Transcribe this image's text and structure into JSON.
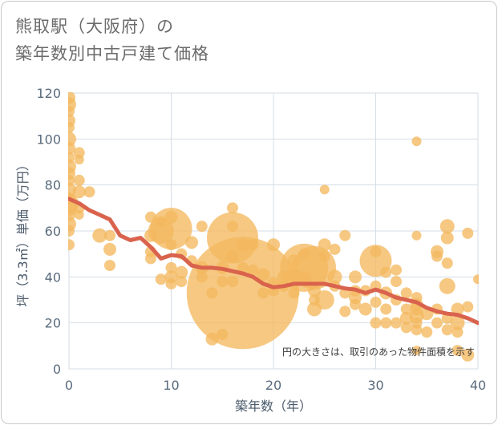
{
  "title_line1": "熊取駅（大阪府）の",
  "title_line2": "築年数別中古戸建て価格",
  "chart_data": {
    "type": "scatter",
    "title": "熊取駅（大阪府）の 築年数別中古戸建て価格",
    "xlabel": "築年数（年）",
    "ylabel": "坪（3.3㎡）単価（万円）",
    "xlim": [
      0,
      40
    ],
    "ylim": [
      0,
      120
    ],
    "xticks": [
      0,
      10,
      20,
      30,
      40
    ],
    "yticks": [
      0,
      20,
      40,
      60,
      80,
      100,
      120
    ],
    "grid": true,
    "note": "円の大きさは、取引のあった物件面積を示す",
    "colors": {
      "bubble": "#f3b95f",
      "trend": "#d9634d",
      "grid": "#d5dde5"
    },
    "points": [
      {
        "x": 0,
        "y": 118,
        "s": 8
      },
      {
        "x": 0,
        "y": 115,
        "s": 9
      },
      {
        "x": 0,
        "y": 112,
        "s": 7
      },
      {
        "x": 0,
        "y": 108,
        "s": 8
      },
      {
        "x": 0,
        "y": 105,
        "s": 7
      },
      {
        "x": 0,
        "y": 100,
        "s": 9
      },
      {
        "x": 0,
        "y": 96,
        "s": 8
      },
      {
        "x": 0,
        "y": 92,
        "s": 7
      },
      {
        "x": 0,
        "y": 88,
        "s": 9
      },
      {
        "x": 0,
        "y": 85,
        "s": 8
      },
      {
        "x": 0,
        "y": 82,
        "s": 7
      },
      {
        "x": 0,
        "y": 78,
        "s": 9
      },
      {
        "x": 0,
        "y": 74,
        "s": 8
      },
      {
        "x": 0,
        "y": 70,
        "s": 10
      },
      {
        "x": 0,
        "y": 67,
        "s": 8
      },
      {
        "x": 0,
        "y": 63,
        "s": 9
      },
      {
        "x": 0,
        "y": 60,
        "s": 7
      },
      {
        "x": 0,
        "y": 54,
        "s": 7
      },
      {
        "x": 0,
        "y": 72,
        "s": 12
      },
      {
        "x": 1,
        "y": 94,
        "s": 7
      },
      {
        "x": 1,
        "y": 91,
        "s": 6
      },
      {
        "x": 1,
        "y": 82,
        "s": 7
      },
      {
        "x": 1,
        "y": 77,
        "s": 8
      },
      {
        "x": 1,
        "y": 70,
        "s": 7
      },
      {
        "x": 1,
        "y": 67,
        "s": 6
      },
      {
        "x": 2,
        "y": 77,
        "s": 7
      },
      {
        "x": 3,
        "y": 58,
        "s": 9
      },
      {
        "x": 4,
        "y": 58,
        "s": 7
      },
      {
        "x": 4,
        "y": 52,
        "s": 8
      },
      {
        "x": 4,
        "y": 45,
        "s": 7
      },
      {
        "x": 8,
        "y": 66,
        "s": 7
      },
      {
        "x": 8,
        "y": 58,
        "s": 8
      },
      {
        "x": 8,
        "y": 51,
        "s": 7
      },
      {
        "x": 8,
        "y": 48,
        "s": 7
      },
      {
        "x": 9,
        "y": 64,
        "s": 7
      },
      {
        "x": 9,
        "y": 60,
        "s": 16
      },
      {
        "x": 9,
        "y": 39,
        "s": 7
      },
      {
        "x": 10,
        "y": 61,
        "s": 26
      },
      {
        "x": 10,
        "y": 66,
        "s": 8
      },
      {
        "x": 10,
        "y": 54,
        "s": 7
      },
      {
        "x": 10,
        "y": 44,
        "s": 7
      },
      {
        "x": 10,
        "y": 40,
        "s": 8
      },
      {
        "x": 10,
        "y": 37,
        "s": 7
      },
      {
        "x": 11,
        "y": 50,
        "s": 7
      },
      {
        "x": 11,
        "y": 42,
        "s": 8
      },
      {
        "x": 11,
        "y": 38,
        "s": 7
      },
      {
        "x": 12,
        "y": 55,
        "s": 8
      },
      {
        "x": 12,
        "y": 47,
        "s": 7
      },
      {
        "x": 13,
        "y": 62,
        "s": 7
      },
      {
        "x": 13,
        "y": 44,
        "s": 8
      },
      {
        "x": 13,
        "y": 40,
        "s": 7
      },
      {
        "x": 14,
        "y": 33,
        "s": 7
      },
      {
        "x": 14,
        "y": 13,
        "s": 8
      },
      {
        "x": 15,
        "y": 44,
        "s": 8
      },
      {
        "x": 15,
        "y": 38,
        "s": 7
      },
      {
        "x": 15,
        "y": 15,
        "s": 7
      },
      {
        "x": 16,
        "y": 57,
        "s": 32
      },
      {
        "x": 16,
        "y": 70,
        "s": 7
      },
      {
        "x": 16,
        "y": 62,
        "s": 7
      },
      {
        "x": 16,
        "y": 49,
        "s": 8
      },
      {
        "x": 16,
        "y": 38,
        "s": 7
      },
      {
        "x": 17,
        "y": 33,
        "s": 70
      },
      {
        "x": 17,
        "y": 54,
        "s": 8
      },
      {
        "x": 17,
        "y": 44,
        "s": 7
      },
      {
        "x": 18,
        "y": 54,
        "s": 7
      },
      {
        "x": 18,
        "y": 43,
        "s": 7
      },
      {
        "x": 19,
        "y": 41,
        "s": 8
      },
      {
        "x": 19,
        "y": 33,
        "s": 7
      },
      {
        "x": 20,
        "y": 54,
        "s": 8
      },
      {
        "x": 20,
        "y": 37,
        "s": 8
      },
      {
        "x": 20,
        "y": 34,
        "s": 7
      },
      {
        "x": 21,
        "y": 40,
        "s": 8
      },
      {
        "x": 21,
        "y": 36,
        "s": 7
      },
      {
        "x": 22,
        "y": 47,
        "s": 8
      },
      {
        "x": 22,
        "y": 41,
        "s": 9
      },
      {
        "x": 22,
        "y": 33,
        "s": 7
      },
      {
        "x": 23,
        "y": 44,
        "s": 30
      },
      {
        "x": 23,
        "y": 50,
        "s": 7
      },
      {
        "x": 23,
        "y": 39,
        "s": 9
      },
      {
        "x": 24,
        "y": 44,
        "s": 27
      },
      {
        "x": 24,
        "y": 34,
        "s": 8
      },
      {
        "x": 24,
        "y": 30,
        "s": 7
      },
      {
        "x": 24,
        "y": 26,
        "s": 9
      },
      {
        "x": 25,
        "y": 78,
        "s": 6
      },
      {
        "x": 25,
        "y": 54,
        "s": 8
      },
      {
        "x": 25,
        "y": 49,
        "s": 7
      },
      {
        "x": 25,
        "y": 30,
        "s": 12
      },
      {
        "x": 26,
        "y": 52,
        "s": 7
      },
      {
        "x": 26,
        "y": 40,
        "s": 9
      },
      {
        "x": 26,
        "y": 36,
        "s": 7
      },
      {
        "x": 27,
        "y": 58,
        "s": 7
      },
      {
        "x": 27,
        "y": 33,
        "s": 7
      },
      {
        "x": 27,
        "y": 25,
        "s": 7
      },
      {
        "x": 28,
        "y": 40,
        "s": 8
      },
      {
        "x": 28,
        "y": 34,
        "s": 7
      },
      {
        "x": 28,
        "y": 31,
        "s": 8
      },
      {
        "x": 28,
        "y": 28,
        "s": 7
      },
      {
        "x": 29,
        "y": 34,
        "s": 7
      },
      {
        "x": 29,
        "y": 26,
        "s": 8
      },
      {
        "x": 30,
        "y": 47,
        "s": 20
      },
      {
        "x": 30,
        "y": 51,
        "s": 7
      },
      {
        "x": 30,
        "y": 36,
        "s": 7
      },
      {
        "x": 30,
        "y": 29,
        "s": 7
      },
      {
        "x": 30,
        "y": 20,
        "s": 7
      },
      {
        "x": 31,
        "y": 42,
        "s": 7
      },
      {
        "x": 31,
        "y": 33,
        "s": 8
      },
      {
        "x": 31,
        "y": 26,
        "s": 7
      },
      {
        "x": 31,
        "y": 20,
        "s": 7
      },
      {
        "x": 32,
        "y": 43,
        "s": 7
      },
      {
        "x": 32,
        "y": 38,
        "s": 7
      },
      {
        "x": 32,
        "y": 30,
        "s": 7
      },
      {
        "x": 32,
        "y": 20,
        "s": 7
      },
      {
        "x": 33,
        "y": 33,
        "s": 7
      },
      {
        "x": 33,
        "y": 26,
        "s": 7
      },
      {
        "x": 33,
        "y": 22,
        "s": 8
      },
      {
        "x": 33,
        "y": 18,
        "s": 7
      },
      {
        "x": 34,
        "y": 99,
        "s": 6
      },
      {
        "x": 34,
        "y": 58,
        "s": 6
      },
      {
        "x": 34,
        "y": 31,
        "s": 7
      },
      {
        "x": 34,
        "y": 28,
        "s": 8
      },
      {
        "x": 34,
        "y": 26,
        "s": 8
      },
      {
        "x": 34,
        "y": 23,
        "s": 9
      },
      {
        "x": 34,
        "y": 20,
        "s": 7
      },
      {
        "x": 34,
        "y": 17,
        "s": 7
      },
      {
        "x": 34,
        "y": 8,
        "s": 6
      },
      {
        "x": 35,
        "y": 24,
        "s": 8
      },
      {
        "x": 35,
        "y": 16,
        "s": 7
      },
      {
        "x": 36,
        "y": 51,
        "s": 8
      },
      {
        "x": 36,
        "y": 49,
        "s": 7
      },
      {
        "x": 36,
        "y": 26,
        "s": 7
      },
      {
        "x": 36,
        "y": 20,
        "s": 7
      },
      {
        "x": 37,
        "y": 62,
        "s": 9
      },
      {
        "x": 37,
        "y": 57,
        "s": 8
      },
      {
        "x": 37,
        "y": 46,
        "s": 7
      },
      {
        "x": 37,
        "y": 36,
        "s": 10
      },
      {
        "x": 37,
        "y": 22,
        "s": 7
      },
      {
        "x": 37,
        "y": 17,
        "s": 7
      },
      {
        "x": 38,
        "y": 26,
        "s": 8
      },
      {
        "x": 38,
        "y": 20,
        "s": 9
      },
      {
        "x": 38,
        "y": 16,
        "s": 7
      },
      {
        "x": 38,
        "y": 8,
        "s": 7
      },
      {
        "x": 39,
        "y": 59,
        "s": 7
      },
      {
        "x": 39,
        "y": 27,
        "s": 7
      },
      {
        "x": 39,
        "y": 6,
        "s": 8
      },
      {
        "x": 40,
        "y": 39,
        "s": 6
      }
    ],
    "trend": [
      {
        "x": 0,
        "y": 74
      },
      {
        "x": 1,
        "y": 72
      },
      {
        "x": 2,
        "y": 69
      },
      {
        "x": 3,
        "y": 67
      },
      {
        "x": 4,
        "y": 65
      },
      {
        "x": 5,
        "y": 58
      },
      {
        "x": 6,
        "y": 56
      },
      {
        "x": 7,
        "y": 57
      },
      {
        "x": 8,
        "y": 53
      },
      {
        "x": 9,
        "y": 48
      },
      {
        "x": 10,
        "y": 49.5
      },
      {
        "x": 11,
        "y": 49
      },
      {
        "x": 12,
        "y": 45
      },
      {
        "x": 13,
        "y": 44
      },
      {
        "x": 14,
        "y": 44
      },
      {
        "x": 15,
        "y": 43.5
      },
      {
        "x": 16,
        "y": 42.5
      },
      {
        "x": 17,
        "y": 41.5
      },
      {
        "x": 18,
        "y": 40
      },
      {
        "x": 19,
        "y": 37
      },
      {
        "x": 20,
        "y": 35.5
      },
      {
        "x": 21,
        "y": 36
      },
      {
        "x": 22,
        "y": 37
      },
      {
        "x": 23,
        "y": 37
      },
      {
        "x": 24,
        "y": 37
      },
      {
        "x": 25,
        "y": 37
      },
      {
        "x": 26,
        "y": 36
      },
      {
        "x": 27,
        "y": 35
      },
      {
        "x": 28,
        "y": 34.5
      },
      {
        "x": 29,
        "y": 33
      },
      {
        "x": 30,
        "y": 34.5
      },
      {
        "x": 31,
        "y": 33
      },
      {
        "x": 32,
        "y": 31
      },
      {
        "x": 33,
        "y": 30
      },
      {
        "x": 34,
        "y": 29
      },
      {
        "x": 35,
        "y": 26.5
      },
      {
        "x": 36,
        "y": 25
      },
      {
        "x": 37,
        "y": 24
      },
      {
        "x": 38,
        "y": 23.5
      },
      {
        "x": 39,
        "y": 22
      },
      {
        "x": 40,
        "y": 20
      }
    ]
  }
}
